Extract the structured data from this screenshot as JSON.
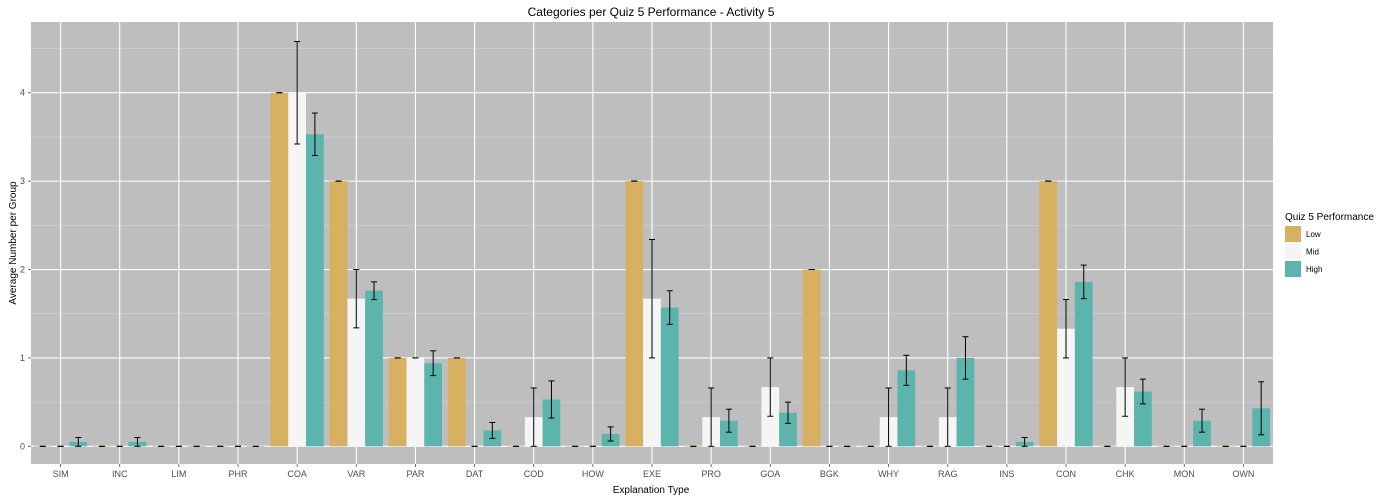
{
  "chart_data": {
    "type": "bar",
    "title": "Categories per Quiz 5 Performance - Activity 5",
    "xlabel": "Explanation Type",
    "ylabel": "Average Number per Group",
    "ylim": [
      -0.2,
      4.8
    ],
    "yticks": [
      0,
      1,
      2,
      3,
      4
    ],
    "grid": true,
    "legend": {
      "title": "Quiz 5 Performance",
      "position": "right"
    },
    "categories": [
      "SIM",
      "INC",
      "LIM",
      "PHR",
      "COA",
      "VAR",
      "PAR",
      "DAT",
      "COD",
      "HOW",
      "EXE",
      "PRO",
      "GOA",
      "BGK",
      "WHY",
      "RAG",
      "INS",
      "CON",
      "CHK",
      "MON",
      "OWN"
    ],
    "series": [
      {
        "name": "Low",
        "color": "#d8b062",
        "values": [
          0,
          0,
          0,
          0,
          4,
          3,
          1,
          1,
          0,
          0,
          3,
          0,
          0,
          2,
          0,
          0,
          0,
          3,
          0,
          0,
          0
        ],
        "error": [
          0,
          0,
          0,
          0,
          0,
          0,
          0,
          0,
          0,
          0,
          0,
          0,
          0,
          0,
          0,
          0,
          0,
          0,
          0,
          0,
          0
        ]
      },
      {
        "name": "Mid",
        "color": "#f5f5f5",
        "values": [
          0,
          0,
          0,
          0,
          4,
          1.67,
          1,
          0,
          0.33,
          0,
          1.67,
          0.33,
          0.67,
          0,
          0.33,
          0.33,
          0,
          1.33,
          0.67,
          0,
          0
        ],
        "error": [
          0,
          0,
          0,
          0,
          0.58,
          0.33,
          0,
          0,
          0.33,
          0,
          0.67,
          0.33,
          0.33,
          0,
          0.33,
          0.33,
          0,
          0.33,
          0.33,
          0,
          0
        ]
      },
      {
        "name": "High",
        "color": "#5bb5ad",
        "values": [
          0.05,
          0.05,
          0,
          0,
          3.53,
          1.76,
          0.94,
          0.18,
          0.53,
          0.14,
          1.57,
          0.29,
          0.38,
          0,
          0.86,
          1,
          0.05,
          1.86,
          0.62,
          0.29,
          0.43
        ],
        "error": [
          0.05,
          0.05,
          0,
          0,
          0.24,
          0.1,
          0.14,
          0.09,
          0.21,
          0.08,
          0.19,
          0.13,
          0.12,
          0,
          0.17,
          0.24,
          0.05,
          0.19,
          0.14,
          0.13,
          0.3
        ]
      }
    ]
  }
}
